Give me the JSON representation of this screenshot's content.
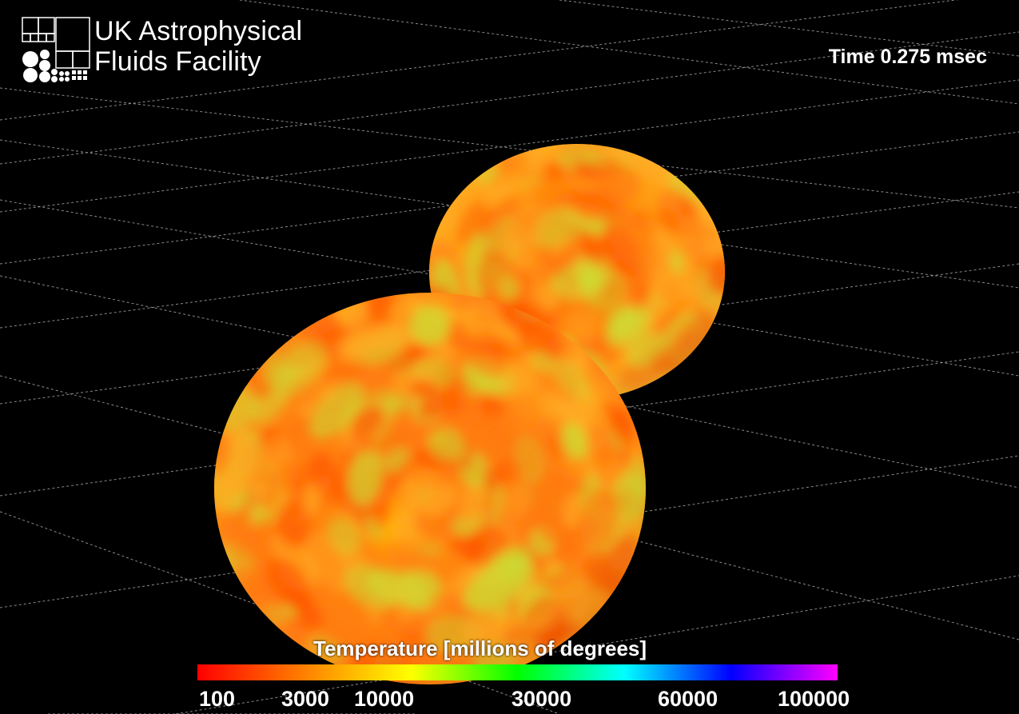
{
  "logo": {
    "line1": "UK Astrophysical",
    "line2": "Fluids Facility"
  },
  "time_label": "Time 0.275 msec",
  "colorbar": {
    "title": "Temperature [millions of degrees]",
    "ticks": [
      "100",
      "3000",
      "10000",
      "30000",
      "60000",
      "100000"
    ],
    "gradient_colors": [
      "#ff0000",
      "#ff8000",
      "#ffff00",
      "#00ff00",
      "#00ffff",
      "#0000ff",
      "#ff00ff"
    ]
  },
  "scene": {
    "background": "#000000",
    "grid_color": "#b8b8b8",
    "sphere_colors": [
      "#ff5500",
      "#ff7a10",
      "#ffaa22",
      "#ccdd33"
    ]
  }
}
